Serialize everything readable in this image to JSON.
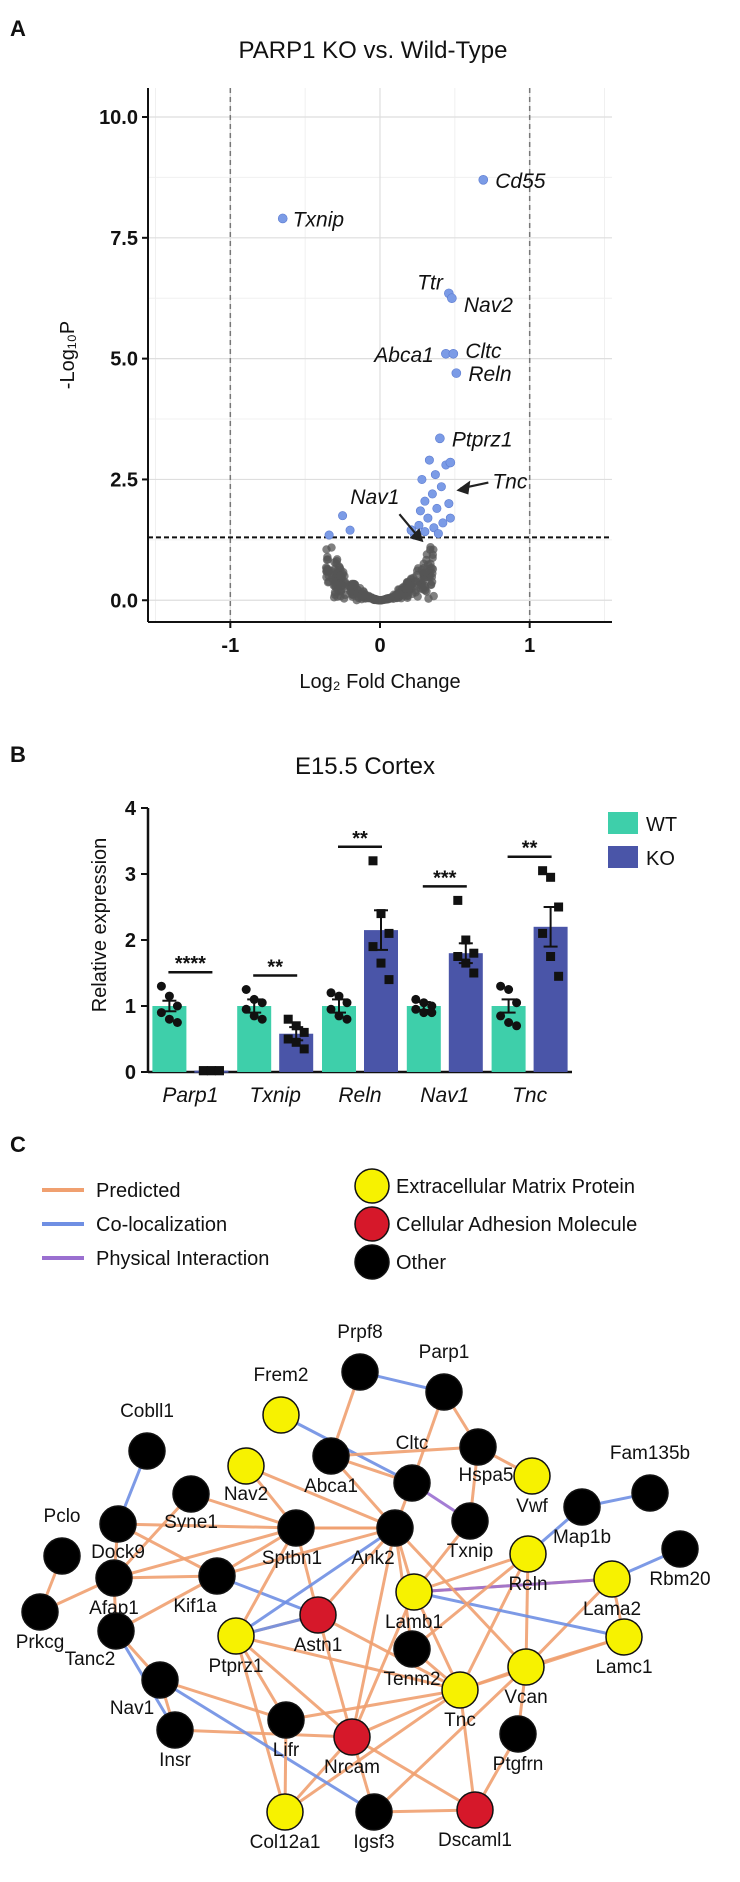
{
  "panels": {
    "a": "A",
    "b": "B",
    "c": "C"
  },
  "chart_data": [
    {
      "type": "scatter",
      "title": "PARP1 KO vs. Wild-Type",
      "xlabel": "Log₂ Fold Change",
      "ylabel": "-Log₁₀P",
      "xlim": [
        -1.55,
        1.55
      ],
      "ylim": [
        -0.45,
        10.6
      ],
      "xticks": [
        -1,
        0,
        1
      ],
      "yticks": [
        0.0,
        2.5,
        5.0,
        7.5,
        10.0
      ],
      "xtick_labels": [
        "-1",
        "0",
        "1"
      ],
      "ytick_labels": [
        "0.0",
        "2.5",
        "5.0",
        "7.5",
        "10.0"
      ],
      "grid": true,
      "significance_threshold_y": 1.3,
      "fold_change_thresholds_x": [
        -1,
        1
      ],
      "colors": {
        "significant": "#7b9be6",
        "nonsignificant": "#555555"
      },
      "labeled_points": [
        {
          "label": "Cd55",
          "x": 0.69,
          "y": 8.7
        },
        {
          "label": "Txnip",
          "x": -0.65,
          "y": 7.9
        },
        {
          "label": "Ttr",
          "x": 0.46,
          "y": 6.35
        },
        {
          "label": "Nav2",
          "x": 0.48,
          "y": 6.25
        },
        {
          "label": "Abca1",
          "x": 0.44,
          "y": 5.1
        },
        {
          "label": "Cltc",
          "x": 0.49,
          "y": 5.1
        },
        {
          "label": "Reln",
          "x": 0.51,
          "y": 4.7
        },
        {
          "label": "Ptprz1",
          "x": 0.4,
          "y": 3.35
        },
        {
          "label": "Tnc",
          "x": 0.47,
          "y": 2.85
        },
        {
          "label": "Nav1",
          "x": 0.21,
          "y": 1.45
        }
      ],
      "other_significant_points": [
        {
          "x": 0.33,
          "y": 2.9
        },
        {
          "x": 0.44,
          "y": 2.8
        },
        {
          "x": 0.37,
          "y": 2.6
        },
        {
          "x": 0.28,
          "y": 2.5
        },
        {
          "x": 0.41,
          "y": 2.35
        },
        {
          "x": 0.35,
          "y": 2.2
        },
        {
          "x": 0.3,
          "y": 2.05
        },
        {
          "x": 0.46,
          "y": 2.0
        },
        {
          "x": 0.38,
          "y": 1.9
        },
        {
          "x": 0.27,
          "y": 1.85
        },
        {
          "x": 0.32,
          "y": 1.7
        },
        {
          "x": 0.42,
          "y": 1.6
        },
        {
          "x": 0.26,
          "y": 1.55
        },
        {
          "x": 0.36,
          "y": 1.5
        },
        {
          "x": 0.3,
          "y": 1.42
        },
        {
          "x": 0.23,
          "y": 1.35
        },
        {
          "x": -0.25,
          "y": 1.75
        },
        {
          "x": -0.34,
          "y": 1.35
        },
        {
          "x": -0.2,
          "y": 1.45
        },
        {
          "x": 0.39,
          "y": 1.38
        },
        {
          "x": 0.47,
          "y": 1.7
        }
      ],
      "nonsignificant_cloud": {
        "n_points": 320,
        "seed": 7
      },
      "annotations": [
        {
          "text": "Tnc",
          "type": "arrow"
        },
        {
          "text": "Nav1",
          "type": "arrow"
        }
      ]
    },
    {
      "type": "bar",
      "title": "E15.5 Cortex",
      "ylabel": "Relative expression",
      "ylim": [
        0,
        4
      ],
      "yticks": [
        0,
        1,
        2,
        3,
        4
      ],
      "ytick_labels": [
        "0",
        "1",
        "2",
        "3",
        "4"
      ],
      "categories": [
        "Parp1",
        "Txnip",
        "Reln",
        "Nav1",
        "Tnc"
      ],
      "series": [
        {
          "name": "WT",
          "color": "#3ecfaa",
          "values": [
            1.0,
            1.0,
            1.0,
            1.0,
            1.0
          ],
          "sem": [
            0.08,
            0.1,
            0.1,
            0.06,
            0.1
          ],
          "points": [
            [
              1.3,
              1.15,
              1.0,
              0.9,
              0.8,
              0.75
            ],
            [
              1.25,
              1.1,
              1.05,
              0.95,
              0.85,
              0.8
            ],
            [
              1.2,
              1.15,
              1.05,
              0.95,
              0.85,
              0.8
            ],
            [
              1.1,
              1.05,
              1.0,
              0.95,
              0.9,
              0.9
            ],
            [
              1.3,
              1.25,
              1.05,
              0.85,
              0.75,
              0.7
            ]
          ]
        },
        {
          "name": "KO",
          "color": "#4a55a8",
          "values": [
            0.02,
            0.58,
            2.15,
            1.8,
            2.2
          ],
          "sem": [
            0.01,
            0.1,
            0.3,
            0.15,
            0.3
          ],
          "points": [
            [
              0.02,
              0.02,
              0.02,
              0.02,
              0.02,
              0.02
            ],
            [
              0.8,
              0.7,
              0.6,
              0.5,
              0.45,
              0.35
            ],
            [
              3.2,
              2.4,
              2.1,
              1.9,
              1.65,
              1.4
            ],
            [
              2.6,
              2.0,
              1.8,
              1.75,
              1.65,
              1.5
            ],
            [
              3.05,
              2.95,
              2.5,
              2.1,
              1.75,
              1.45
            ]
          ]
        }
      ],
      "significance": [
        "****",
        "**",
        "**",
        "***",
        "**"
      ],
      "legend": "top-right"
    }
  ],
  "network": {
    "legend": {
      "edges": [
        {
          "label": "Predicted",
          "color": "#f0a070"
        },
        {
          "label": "Co-localization",
          "color": "#6f8fe3"
        },
        {
          "label": "Physical Interaction",
          "color": "#9a6fd0"
        }
      ],
      "nodes": [
        {
          "label": "Extracellular Matrix Protein",
          "color": "#f7f200"
        },
        {
          "label": "Cellular Adhesion Molecule",
          "color": "#d6182a"
        },
        {
          "label": "Other",
          "color": "#000000"
        }
      ]
    },
    "nodes": [
      {
        "id": "Prpf8",
        "label": "Prpf8",
        "type": "other"
      },
      {
        "id": "Parp1",
        "label": "Parp1",
        "type": "other"
      },
      {
        "id": "Frem2",
        "label": "Frem2",
        "type": "ecm"
      },
      {
        "id": "Cobll1",
        "label": "Cobll1",
        "type": "other"
      },
      {
        "id": "Cltc",
        "label": "Cltc",
        "type": "other"
      },
      {
        "id": "Hspa5",
        "label": "Hspa5",
        "type": "other"
      },
      {
        "id": "Vwf",
        "label": "Vwf",
        "type": "ecm"
      },
      {
        "id": "Fam135b",
        "label": "Fam135b",
        "type": "other"
      },
      {
        "id": "Nav2",
        "label": "Nav2",
        "type": "ecm"
      },
      {
        "id": "Abca1",
        "label": "Abca1",
        "type": "other"
      },
      {
        "id": "Syne1",
        "label": "Syne1",
        "type": "other"
      },
      {
        "id": "Pclo",
        "label": "Pclo",
        "type": "other"
      },
      {
        "id": "Dock9",
        "label": "Dock9",
        "type": "other"
      },
      {
        "id": "Map1b",
        "label": "Map1b",
        "type": "other"
      },
      {
        "id": "Txnip",
        "label": "Txnip",
        "type": "other"
      },
      {
        "id": "Sptbn1",
        "label": "Sptbn1",
        "type": "other"
      },
      {
        "id": "Ank2",
        "label": "Ank2",
        "type": "other"
      },
      {
        "id": "Reln",
        "label": "Reln",
        "type": "ecm"
      },
      {
        "id": "Rbm20",
        "label": "Rbm20",
        "type": "other"
      },
      {
        "id": "Prkcg",
        "label": "Prkcg",
        "type": "other"
      },
      {
        "id": "Afap1",
        "label": "Afap1",
        "type": "other"
      },
      {
        "id": "Kif1a",
        "label": "Kif1a",
        "type": "other"
      },
      {
        "id": "Lamb1",
        "label": "Lamb1",
        "type": "ecm"
      },
      {
        "id": "Lama2",
        "label": "Lama2",
        "type": "ecm"
      },
      {
        "id": "Tanc2",
        "label": "Tanc2",
        "type": "other"
      },
      {
        "id": "Ptprz1",
        "label": "Ptprz1",
        "type": "ecm"
      },
      {
        "id": "Astn1",
        "label": "Astn1",
        "type": "cam"
      },
      {
        "id": "Tenm2",
        "label": "Tenm2",
        "type": "other"
      },
      {
        "id": "Lamc1",
        "label": "Lamc1",
        "type": "ecm"
      },
      {
        "id": "Nav1",
        "label": "Nav1",
        "type": "other"
      },
      {
        "id": "Vcan",
        "label": "Vcan",
        "type": "ecm"
      },
      {
        "id": "Tnc",
        "label": "Tnc",
        "type": "ecm"
      },
      {
        "id": "Lifr",
        "label": "Lifr",
        "type": "other"
      },
      {
        "id": "Insr",
        "label": "Insr",
        "type": "other"
      },
      {
        "id": "Nrcam",
        "label": "Nrcam",
        "type": "cam"
      },
      {
        "id": "Ptgfrn",
        "label": "Ptgfrn",
        "type": "other"
      },
      {
        "id": "Col12a1",
        "label": "Col12a1",
        "type": "ecm"
      },
      {
        "id": "Igsf3",
        "label": "Igsf3",
        "type": "other"
      },
      {
        "id": "Dscaml1",
        "label": "Dscaml1",
        "type": "cam"
      }
    ],
    "edges": [
      [
        "Prpf8",
        "Parp1",
        "coloc"
      ],
      [
        "Prpf8",
        "Abca1",
        "predicted"
      ],
      [
        "Frem2",
        "Cltc",
        "coloc"
      ],
      [
        "Parp1",
        "Cltc",
        "predicted"
      ],
      [
        "Parp1",
        "Hspa5",
        "predicted"
      ],
      [
        "Abca1",
        "Cltc",
        "predicted"
      ],
      [
        "Abca1",
        "Hspa5",
        "predicted"
      ],
      [
        "Cltc",
        "Txnip",
        "physical"
      ],
      [
        "Hspa5",
        "Txnip",
        "predicted"
      ],
      [
        "Cltc",
        "Ank2",
        "predicted"
      ],
      [
        "Abca1",
        "Ank2",
        "predicted"
      ],
      [
        "Nav2",
        "Sptbn1",
        "predicted"
      ],
      [
        "Syne1",
        "Sptbn1",
        "predicted"
      ],
      [
        "Cobll1",
        "Dock9",
        "coloc"
      ],
      [
        "Pclo",
        "Prkcg",
        "predicted"
      ],
      [
        "Dock9",
        "Afap1",
        "predicted"
      ],
      [
        "Dock9",
        "Kif1a",
        "predicted"
      ],
      [
        "Dock9",
        "Sptbn1",
        "predicted"
      ],
      [
        "Afap1",
        "Sptbn1",
        "predicted"
      ],
      [
        "Afap1",
        "Kif1a",
        "predicted"
      ],
      [
        "Afap1",
        "Tanc2",
        "predicted"
      ],
      [
        "Prkcg",
        "Afap1",
        "predicted"
      ],
      [
        "Kif1a",
        "Sptbn1",
        "predicted"
      ],
      [
        "Kif1a",
        "Ank2",
        "predicted"
      ],
      [
        "Kif1a",
        "Astn1",
        "coloc"
      ],
      [
        "Kif1a",
        "Tanc2",
        "predicted"
      ],
      [
        "Tanc2",
        "Insr",
        "coloc"
      ],
      [
        "Tanc2",
        "Nav1",
        "predicted"
      ],
      [
        "Sptbn1",
        "Ank2",
        "predicted"
      ],
      [
        "Sptbn1",
        "Astn1",
        "predicted"
      ],
      [
        "Sptbn1",
        "Ptprz1",
        "predicted"
      ],
      [
        "Ank2",
        "Lamb1",
        "predicted"
      ],
      [
        "Ank2",
        "Astn1",
        "predicted"
      ],
      [
        "Ank2",
        "Ptprz1",
        "coloc"
      ],
      [
        "Ank2",
        "Tenm2",
        "predicted"
      ],
      [
        "Ank2",
        "Nrcam",
        "predicted"
      ],
      [
        "Ank2",
        "Sptbn1",
        "predicted"
      ],
      [
        "Map1b",
        "Fam135b",
        "coloc"
      ],
      [
        "Map1b",
        "Reln",
        "coloc"
      ],
      [
        "Reln",
        "Lamb1",
        "predicted"
      ],
      [
        "Reln",
        "Vcan",
        "predicted"
      ],
      [
        "Reln",
        "Tnc",
        "predicted"
      ],
      [
        "Lama2",
        "Rbm20",
        "coloc"
      ],
      [
        "Lama2",
        "Lamb1",
        "predicted"
      ],
      [
        "Lama2",
        "Lamc1",
        "predicted"
      ],
      [
        "Lama2",
        "Vcan",
        "predicted"
      ],
      [
        "Lamb1",
        "Lamc1",
        "coloc"
      ],
      [
        "Lamb1",
        "Tnc",
        "predicted"
      ],
      [
        "Lamb1",
        "Nrcam",
        "predicted"
      ],
      [
        "Lamc1",
        "Vcan",
        "predicted"
      ],
      [
        "Lamc1",
        "Tnc",
        "predicted"
      ],
      [
        "Lamb1",
        "Lama2",
        "physical"
      ],
      [
        "Ptprz1",
        "Astn1",
        "predicted"
      ],
      [
        "Ptprz1",
        "Tnc",
        "predicted"
      ],
      [
        "Ptprz1",
        "Nrcam",
        "predicted"
      ],
      [
        "Ptprz1",
        "Col12a1",
        "predicted"
      ],
      [
        "Ptprz1",
        "Lifr",
        "predicted"
      ],
      [
        "Astn1",
        "Tnc",
        "predicted"
      ],
      [
        "Astn1",
        "Nrcam",
        "predicted"
      ],
      [
        "Tenm2",
        "Tnc",
        "predicted"
      ],
      [
        "Tnc",
        "Nrcam",
        "predicted"
      ],
      [
        "Tnc",
        "Vcan",
        "predicted"
      ],
      [
        "Tnc",
        "Dscaml1",
        "predicted"
      ],
      [
        "Tnc",
        "Col12a1",
        "predicted"
      ],
      [
        "Vcan",
        "Igsf3",
        "predicted"
      ],
      [
        "Vcan",
        "Ptgfrn",
        "predicted"
      ],
      [
        "Nrcam",
        "Igsf3",
        "predicted"
      ],
      [
        "Nrcam",
        "Dscaml1",
        "predicted"
      ],
      [
        "Nrcam",
        "Col12a1",
        "predicted"
      ],
      [
        "Nrcam",
        "Insr",
        "predicted"
      ],
      [
        "Nav1",
        "Igsf3",
        "coloc"
      ],
      [
        "Nav1",
        "Lifr",
        "predicted"
      ],
      [
        "Lifr",
        "Col12a1",
        "predicted"
      ],
      [
        "Ptgfrn",
        "Dscaml1",
        "predicted"
      ],
      [
        "Igsf3",
        "Dscaml1",
        "predicted"
      ],
      [
        "Insr",
        "Nav1",
        "predicted"
      ],
      [
        "Syne1",
        "Afap1",
        "predicted"
      ],
      [
        "Nav2",
        "Ank2",
        "predicted"
      ],
      [
        "Txnip",
        "Lamb1",
        "predicted"
      ],
      [
        "Hspa5",
        "Vwf",
        "predicted"
      ],
      [
        "Ank2",
        "Vcan",
        "predicted"
      ],
      [
        "Ptprz1",
        "Astn1",
        "coloc"
      ],
      [
        "Reln",
        "Tenm2",
        "predicted"
      ],
      [
        "Lifr",
        "Tnc",
        "predicted"
      ]
    ]
  }
}
